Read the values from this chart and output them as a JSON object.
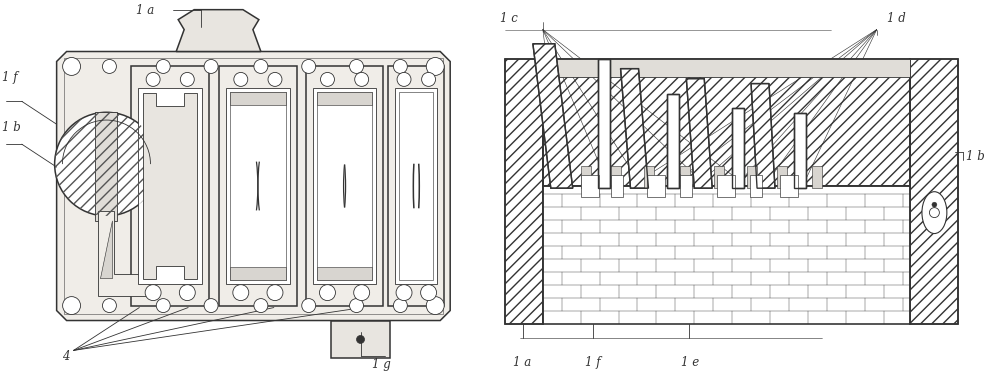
{
  "figsize": [
    10.0,
    3.79
  ],
  "dpi": 100,
  "bg_color": "#ffffff",
  "lc": "#333333",
  "lw_main": 1.1,
  "lw_thin": 0.6,
  "font_size": 8.5,
  "font_color": "#333333"
}
